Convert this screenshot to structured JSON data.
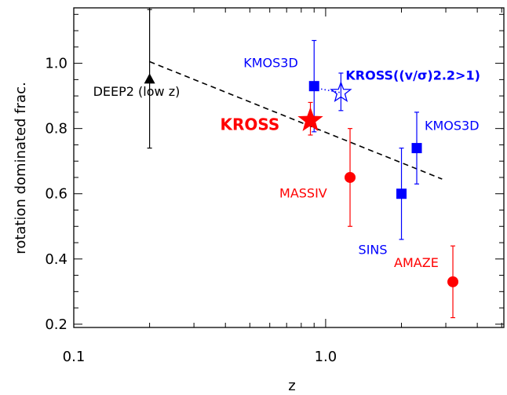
{
  "chart_data": {
    "type": "scatter",
    "xlabel": "z",
    "ylabel": "rotation dominated frac.",
    "xscale": "log",
    "xlim": [
      0.1,
      5.1
    ],
    "ylim": [
      0.19,
      1.17
    ],
    "xticks": [
      {
        "value": 0.1,
        "label": "0.1"
      },
      {
        "value": 1.0,
        "label": "1.0"
      }
    ],
    "yticks": [
      {
        "value": 0.2,
        "label": "0.2"
      },
      {
        "value": 0.4,
        "label": "0.4"
      },
      {
        "value": 0.6,
        "label": "0.6"
      },
      {
        "value": 0.8,
        "label": "0.8"
      },
      {
        "value": 1.0,
        "label": "1.0"
      }
    ],
    "grid": false,
    "trend_line": {
      "x": [
        0.2,
        2.9
      ],
      "y": [
        1.005,
        0.645
      ],
      "style": "dashed",
      "color": "#000000"
    },
    "connector": {
      "x": [
        0.9,
        1.15
      ],
      "y": [
        0.925,
        0.91
      ],
      "style": "dotted",
      "color": "#0000ff"
    },
    "series": [
      {
        "name": "DEEP2 (low z)",
        "marker": "triangle",
        "filled": true,
        "color": "#000000",
        "points": [
          {
            "x": 0.2,
            "y": 0.95,
            "ylo": 0.74,
            "yhi": 1.165
          }
        ]
      },
      {
        "name": "KROSS",
        "marker": "star",
        "filled": true,
        "color": "#ff0000",
        "points": [
          {
            "x": 0.87,
            "y": 0.825,
            "ylo": 0.78,
            "yhi": 0.88
          }
        ]
      },
      {
        "name": "KROSS((v/σ)2.2>1)",
        "marker": "star",
        "filled": false,
        "color": "#0000ff",
        "points": [
          {
            "x": 1.15,
            "y": 0.91,
            "ylo": 0.855,
            "yhi": 0.97
          }
        ]
      },
      {
        "name": "KMOS3D",
        "marker": "square",
        "filled": true,
        "color": "#0000ff",
        "points": [
          {
            "x": 0.9,
            "y": 0.93,
            "ylo": 0.79,
            "yhi": 1.07
          },
          {
            "x": 2.3,
            "y": 0.74,
            "ylo": 0.63,
            "yhi": 0.85
          }
        ]
      },
      {
        "name": "SINS",
        "marker": "square",
        "filled": true,
        "color": "#0000ff",
        "points": [
          {
            "x": 2.0,
            "y": 0.6,
            "ylo": 0.46,
            "yhi": 0.74
          }
        ]
      },
      {
        "name": "MASSIV",
        "marker": "circle",
        "filled": true,
        "color": "#ff0000",
        "points": [
          {
            "x": 1.25,
            "y": 0.65,
            "ylo": 0.5,
            "yhi": 0.8
          }
        ]
      },
      {
        "name": "AMAZE",
        "marker": "circle",
        "filled": true,
        "color": "#ff0000",
        "points": [
          {
            "x": 3.2,
            "y": 0.33,
            "ylo": 0.22,
            "yhi": 0.44
          }
        ]
      }
    ],
    "annotations": [
      {
        "text": "DEEP2 (low z)",
        "x": 0.2,
        "y": 0.9,
        "color": "#000000"
      },
      {
        "text": "KROSS",
        "x": 0.87,
        "y": 0.8,
        "color": "#ff0000"
      },
      {
        "text": "KMOS3D",
        "x": 0.9,
        "y": 1.0,
        "color": "#0000ff"
      },
      {
        "text": "KROSS((v/σ)2.2>1)",
        "x": 1.15,
        "y": 0.95,
        "color": "#0000ff"
      },
      {
        "text": "KMOS3D",
        "x": 2.3,
        "y": 0.8,
        "color": "#0000ff"
      },
      {
        "text": "MASSIV",
        "x": 1.25,
        "y": 0.6,
        "color": "#ff0000"
      },
      {
        "text": "SINS",
        "x": 2.0,
        "y": 0.42,
        "color": "#0000ff"
      },
      {
        "text": "AMAZE",
        "x": 3.2,
        "y": 0.38,
        "color": "#ff0000"
      }
    ]
  }
}
